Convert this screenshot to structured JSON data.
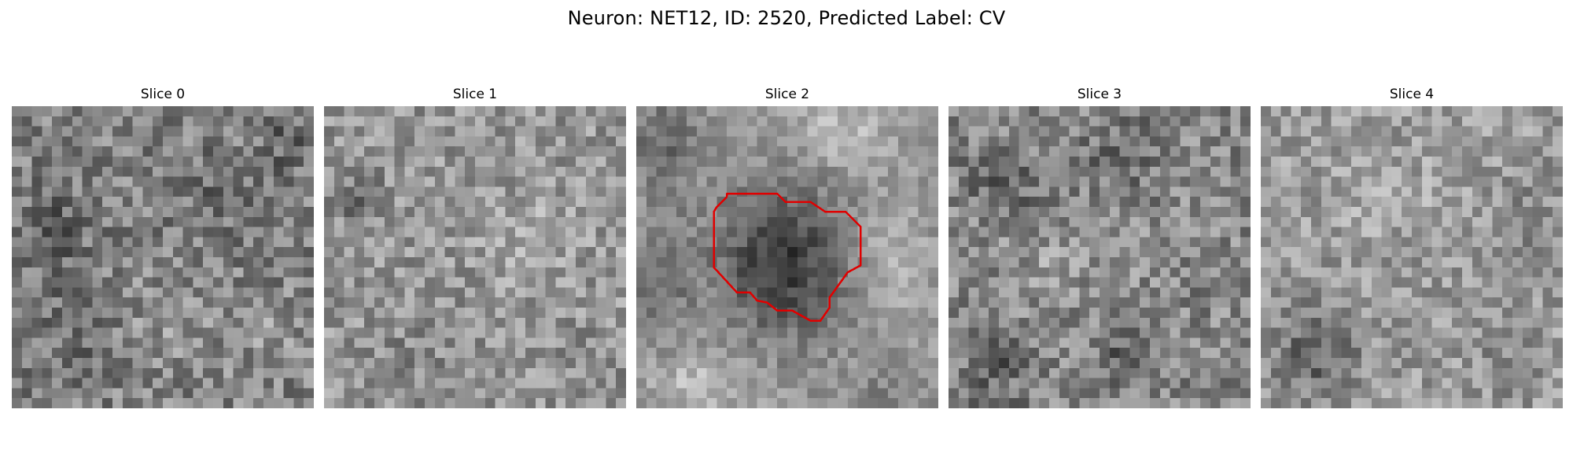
{
  "figure": {
    "title": "Neuron: NET12, ID: 2520, Predicted Label: CV"
  },
  "panels": [
    {
      "label": "Slice 0"
    },
    {
      "label": "Slice 1"
    },
    {
      "label": "Slice 2",
      "has_roi_outline": true,
      "roi_color": "#e00000"
    },
    {
      "label": "Slice 3"
    },
    {
      "label": "Slice 4"
    }
  ],
  "colors": {
    "colormap": "grayscale",
    "roi_outline": "#e00000"
  }
}
